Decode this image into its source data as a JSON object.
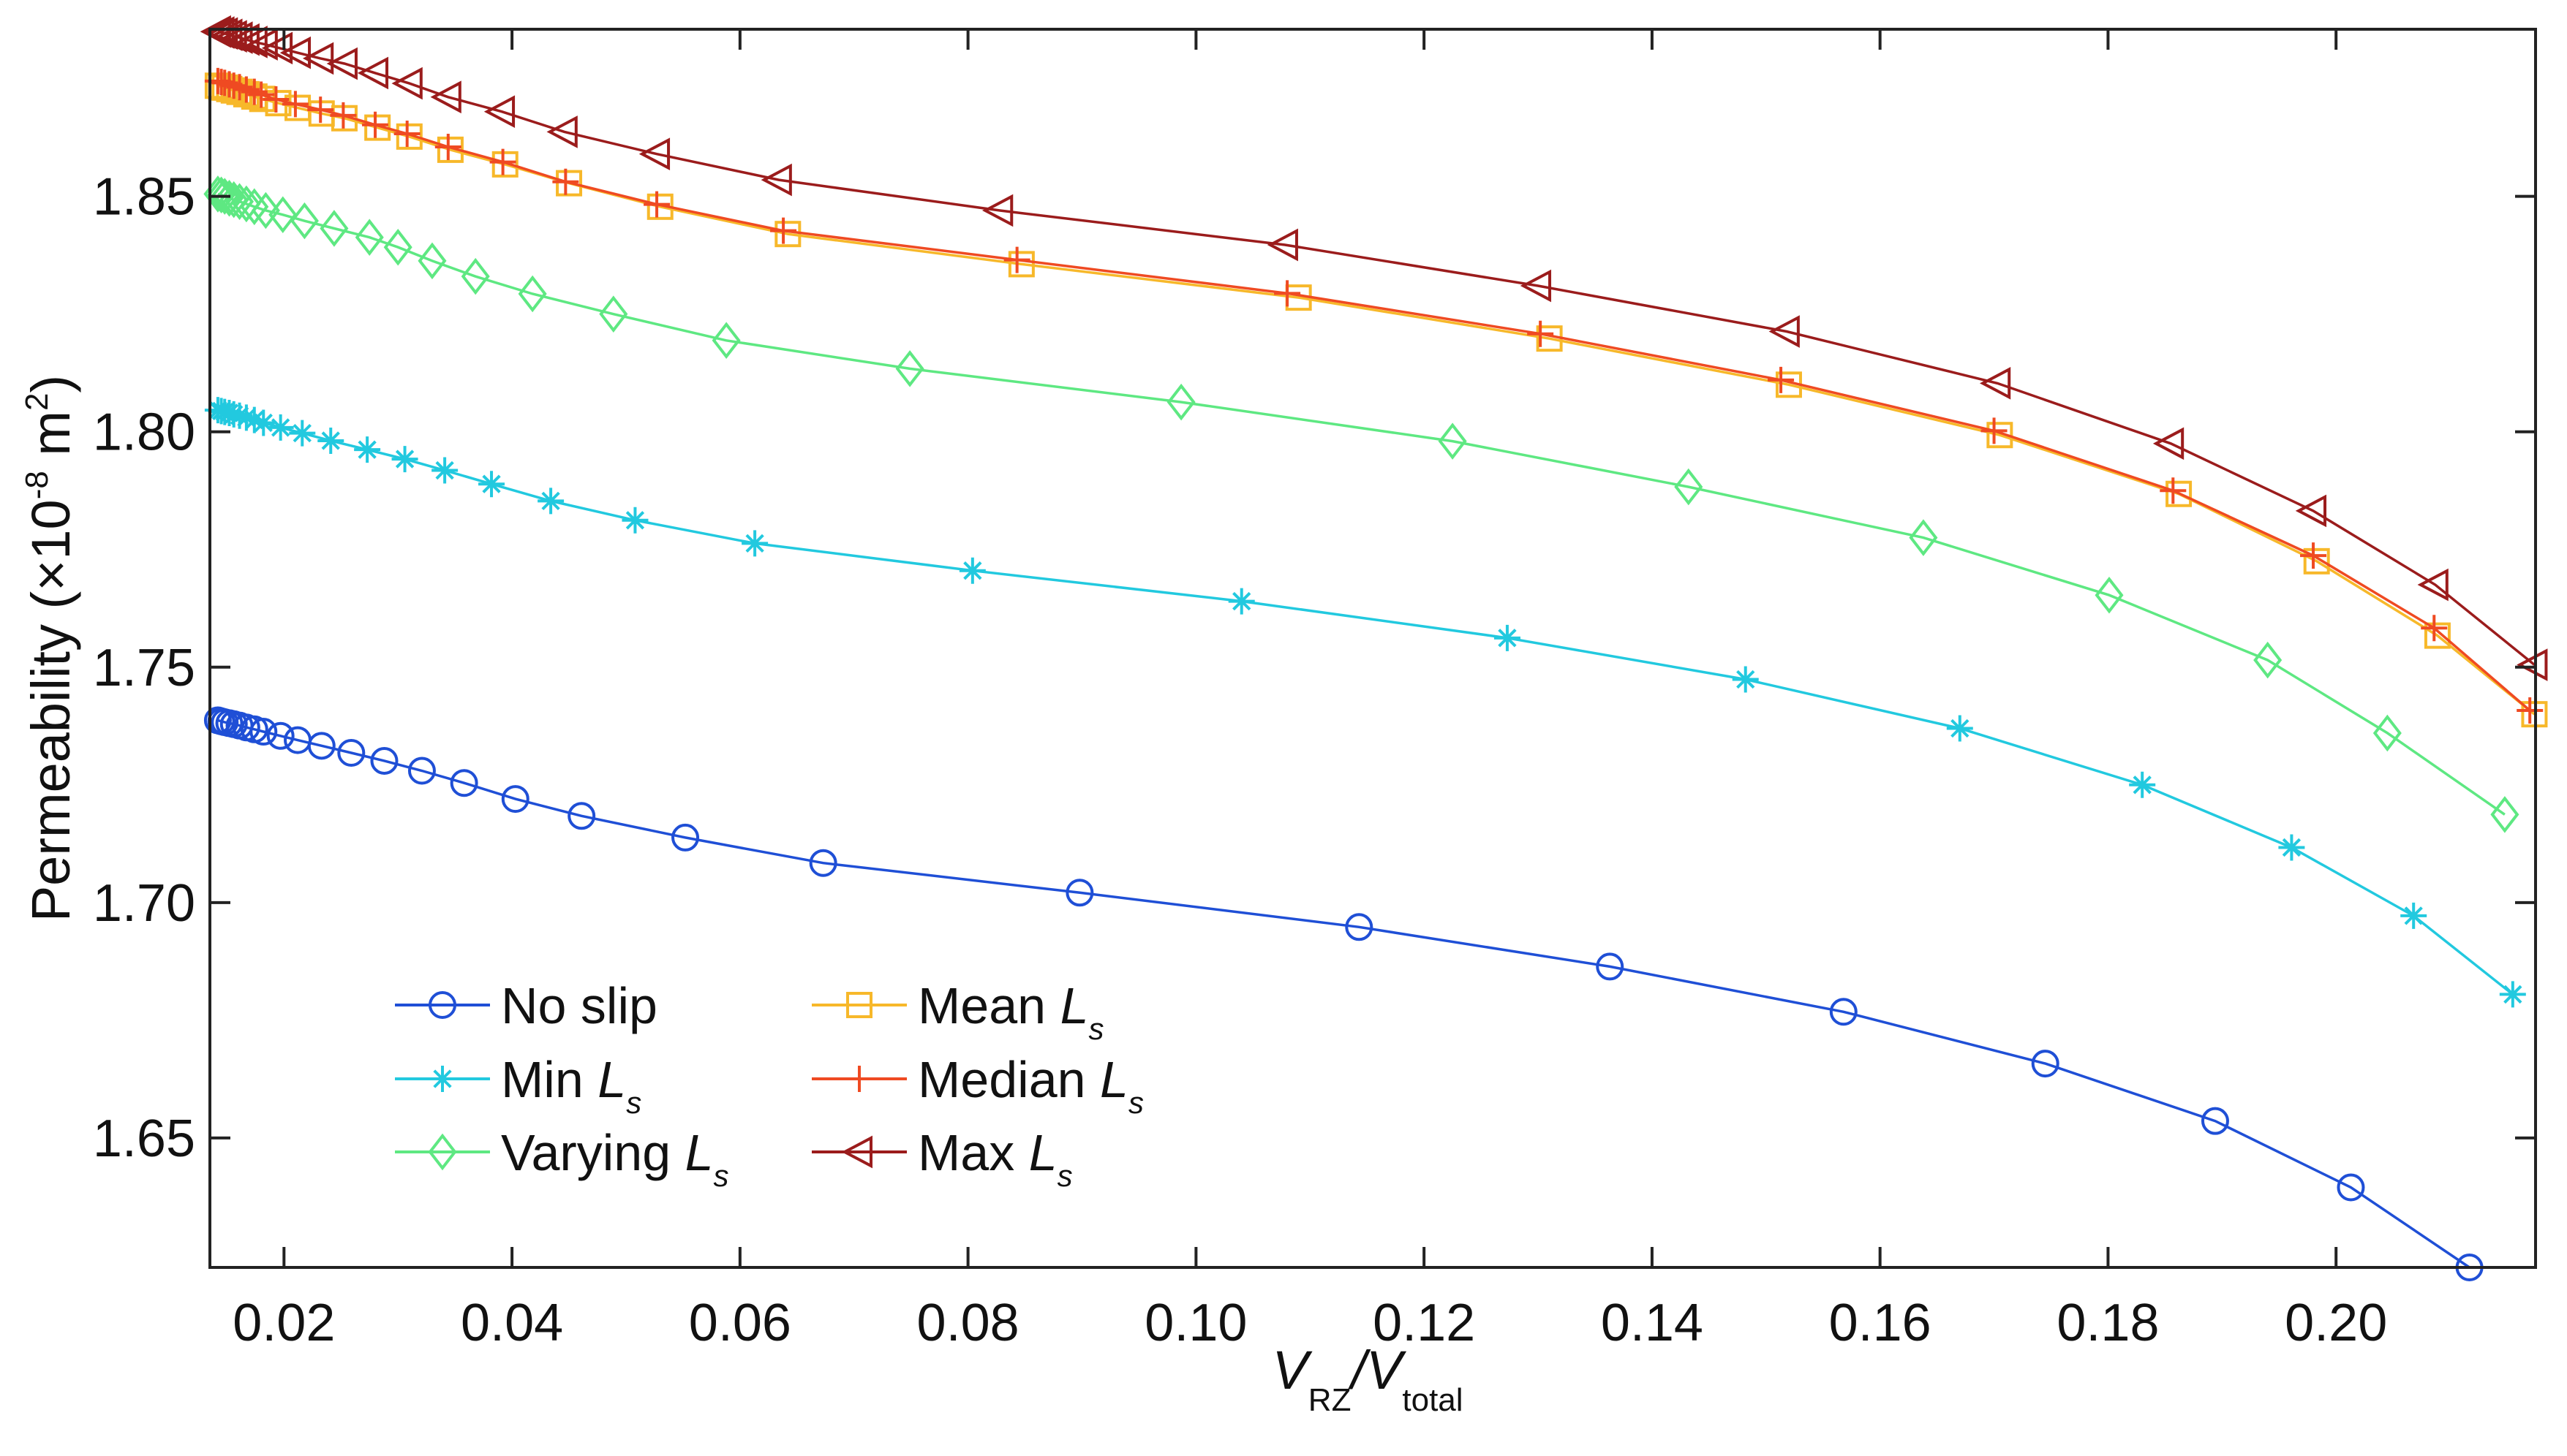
{
  "chart_data": {
    "type": "line",
    "title": "",
    "xlabel": {
      "main": "V",
      "sub1": "RZ",
      "sep": "/V",
      "sub2": "total"
    },
    "ylabel": {
      "prefix": "Permeability (×10",
      "exp": "-8",
      "mid": " m",
      "exp2": "2",
      "suffix": ")"
    },
    "xlim": [
      0.0135,
      0.2175
    ],
    "ylim": [
      1.6225,
      1.8855
    ],
    "xticks": [
      0.02,
      0.04,
      0.06,
      0.08,
      0.1,
      0.12,
      0.14,
      0.16,
      0.18,
      0.2
    ],
    "xtick_labels": [
      "0.02",
      "0.04",
      "0.06",
      "0.08",
      "0.10",
      "0.12",
      "0.14",
      "0.16",
      "0.18",
      "0.20"
    ],
    "yticks": [
      1.65,
      1.7,
      1.75,
      1.8,
      1.85
    ],
    "ytick_labels": [
      "1.65",
      "1.70",
      "1.75",
      "1.80",
      "1.85"
    ],
    "legend_position": "bottom-left",
    "series": [
      {
        "name": "No slip",
        "name_sub": "",
        "color": "#1f4fd6",
        "marker": "circle",
        "x": [
          0.0142,
          0.0145,
          0.0148,
          0.0152,
          0.0156,
          0.0161,
          0.0167,
          0.0174,
          0.0182,
          0.0197,
          0.0212,
          0.0233,
          0.0259,
          0.0288,
          0.0321,
          0.0358,
          0.0403,
          0.0461,
          0.0552,
          0.0673,
          0.0898,
          0.1143,
          0.1363,
          0.1568,
          0.1745,
          0.1894,
          0.2013,
          0.2117
        ],
        "y": [
          1.7387,
          1.7385,
          1.7383,
          1.7381,
          1.7379,
          1.7376,
          1.7372,
          1.7368,
          1.7363,
          1.7354,
          1.7345,
          1.7333,
          1.7318,
          1.7301,
          1.728,
          1.7254,
          1.722,
          1.7184,
          1.7138,
          1.7084,
          1.7021,
          1.6948,
          1.6864,
          1.6768,
          1.6658,
          1.6536,
          1.6395,
          1.6225
        ]
      },
      {
        "name": "Min ",
        "name_sub": "Ls",
        "color": "#22c9df",
        "marker": "asterisk",
        "x": [
          0.0142,
          0.0145,
          0.0148,
          0.0152,
          0.0156,
          0.0161,
          0.0167,
          0.0174,
          0.0182,
          0.0197,
          0.0216,
          0.0241,
          0.0273,
          0.0306,
          0.0341,
          0.0382,
          0.0434,
          0.0508,
          0.0613,
          0.0804,
          0.104,
          0.1273,
          0.1482,
          0.167,
          0.183,
          0.1961,
          0.2068,
          0.2155
        ],
        "y": [
          1.8046,
          1.8044,
          1.8042,
          1.804,
          1.8037,
          1.8034,
          1.803,
          1.8025,
          1.8019,
          1.8009,
          1.7997,
          1.7981,
          1.7962,
          1.7942,
          1.7918,
          1.7889,
          1.7853,
          1.7812,
          1.7763,
          1.7705,
          1.764,
          1.7562,
          1.7474,
          1.737,
          1.725,
          1.7117,
          1.6972,
          1.6805
        ]
      },
      {
        "name": "Varying ",
        "name_sub": "Ls",
        "color": "#5ee882",
        "marker": "diamond",
        "x": [
          0.0142,
          0.0145,
          0.0148,
          0.0152,
          0.0156,
          0.0161,
          0.0167,
          0.0174,
          0.0184,
          0.0199,
          0.0218,
          0.0244,
          0.0275,
          0.03,
          0.033,
          0.0368,
          0.0418,
          0.0489,
          0.0588,
          0.0749,
          0.0987,
          0.1225,
          0.1432,
          0.1638,
          0.1801,
          0.194,
          0.2045,
          0.2148
        ],
        "y": [
          1.8505,
          1.8503,
          1.85,
          1.8496,
          1.8493,
          1.8489,
          1.8484,
          1.8478,
          1.847,
          1.8461,
          1.8448,
          1.8432,
          1.8413,
          1.8392,
          1.8363,
          1.833,
          1.8293,
          1.825,
          1.8194,
          1.8134,
          1.8063,
          1.798,
          1.7883,
          1.7775,
          1.7653,
          1.7515,
          1.736,
          1.7187
        ]
      },
      {
        "name": "Mean ",
        "name_sub": "Ls",
        "color": "#f7b82a",
        "marker": "square",
        "x": [
          0.0142,
          0.0145,
          0.0148,
          0.0152,
          0.0156,
          0.0161,
          0.0167,
          0.0174,
          0.0181,
          0.0195,
          0.0212,
          0.0233,
          0.0253,
          0.0282,
          0.031,
          0.0346,
          0.0394,
          0.045,
          0.053,
          0.0642,
          0.0847,
          0.109,
          0.131,
          0.152,
          0.1705,
          0.1862,
          0.1983,
          0.2089,
          0.2174
        ],
        "y": [
          1.8735,
          1.8733,
          1.8731,
          1.8728,
          1.8725,
          1.8722,
          1.8717,
          1.8712,
          1.8707,
          1.8698,
          1.8688,
          1.8676,
          1.8666,
          1.8646,
          1.8627,
          1.8599,
          1.8568,
          1.8528,
          1.8478,
          1.842,
          1.8356,
          1.8285,
          1.8198,
          1.81,
          1.7993,
          1.7868,
          1.7725,
          1.7567,
          1.74
        ]
      },
      {
        "name": "Median ",
        "name_sub": "Ls",
        "color": "#ef4a22",
        "marker": "plus",
        "x": [
          0.0142,
          0.0145,
          0.0148,
          0.0152,
          0.0156,
          0.0161,
          0.0167,
          0.0174,
          0.018,
          0.0193,
          0.021,
          0.0232,
          0.0252,
          0.028,
          0.0308,
          0.0344,
          0.0392,
          0.0447,
          0.0527,
          0.0638,
          0.0843,
          0.108,
          0.1302,
          0.1513,
          0.17,
          0.1857,
          0.198,
          0.2086,
          0.217
        ],
        "y": [
          1.8745,
          1.8743,
          1.8741,
          1.8738,
          1.8735,
          1.8732,
          1.8727,
          1.8722,
          1.8716,
          1.8706,
          1.8696,
          1.8684,
          1.8672,
          1.8652,
          1.8633,
          1.8605,
          1.8573,
          1.8531,
          1.8483,
          1.8427,
          1.8365,
          1.8294,
          1.8208,
          1.811,
          1.8002,
          1.7875,
          1.7737,
          1.7583,
          1.7408
        ]
      },
      {
        "name": "Max ",
        "name_sub": "Ls",
        "color": "#9b1c1c",
        "marker": "triangle-left",
        "x": [
          0.0142,
          0.0145,
          0.0148,
          0.0152,
          0.0156,
          0.0161,
          0.0167,
          0.0174,
          0.0183,
          0.0196,
          0.0212,
          0.0232,
          0.0253,
          0.028,
          0.031,
          0.0344,
          0.0391,
          0.0446,
          0.0527,
          0.0634,
          0.0828,
          0.1078,
          0.13,
          0.1518,
          0.1703,
          0.1855,
          0.198,
          0.2087,
          0.2174
        ],
        "y": [
          1.885,
          1.8848,
          1.8846,
          1.8843,
          1.884,
          1.8837,
          1.8833,
          1.8828,
          1.8823,
          1.8815,
          1.8805,
          1.8793,
          1.8782,
          1.8762,
          1.874,
          1.8711,
          1.868,
          1.8637,
          1.859,
          1.8535,
          1.847,
          1.8397,
          1.831,
          1.8213,
          1.8103,
          1.7975,
          1.7832,
          1.7675,
          1.7505
        ]
      }
    ]
  }
}
